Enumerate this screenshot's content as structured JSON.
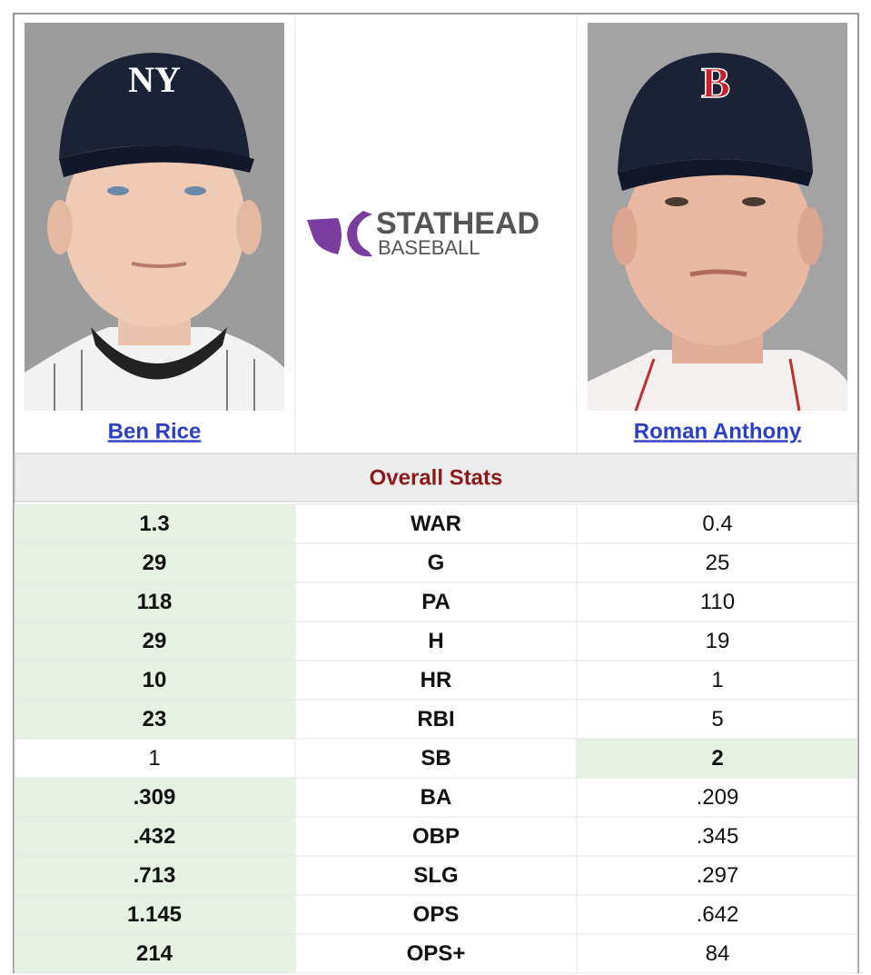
{
  "players": [
    {
      "name": "Ben Rice"
    },
    {
      "name": "Roman Anthony"
    }
  ],
  "logo": {
    "brand": "STATHEAD",
    "sub": "BASEBALL"
  },
  "section_title": "Overall Stats",
  "table": {
    "rows": [
      {
        "left": "1.3",
        "stat": "WAR",
        "right": "0.4",
        "leader": "left"
      },
      {
        "left": "29",
        "stat": "G",
        "right": "25",
        "leader": "left"
      },
      {
        "left": "118",
        "stat": "PA",
        "right": "110",
        "leader": "left"
      },
      {
        "left": "29",
        "stat": "H",
        "right": "19",
        "leader": "left"
      },
      {
        "left": "10",
        "stat": "HR",
        "right": "1",
        "leader": "left"
      },
      {
        "left": "23",
        "stat": "RBI",
        "right": "5",
        "leader": "left"
      },
      {
        "left": "1",
        "stat": "SB",
        "right": "2",
        "leader": "right"
      },
      {
        "left": ".309",
        "stat": "BA",
        "right": ".209",
        "leader": "left"
      },
      {
        "left": ".432",
        "stat": "OBP",
        "right": ".345",
        "leader": "left"
      },
      {
        "left": ".713",
        "stat": "SLG",
        "right": ".297",
        "leader": "left"
      },
      {
        "left": "1.145",
        "stat": "OPS",
        "right": ".642",
        "leader": "left"
      },
      {
        "left": "214",
        "stat": "OPS+",
        "right": "84",
        "leader": "left"
      }
    ]
  }
}
